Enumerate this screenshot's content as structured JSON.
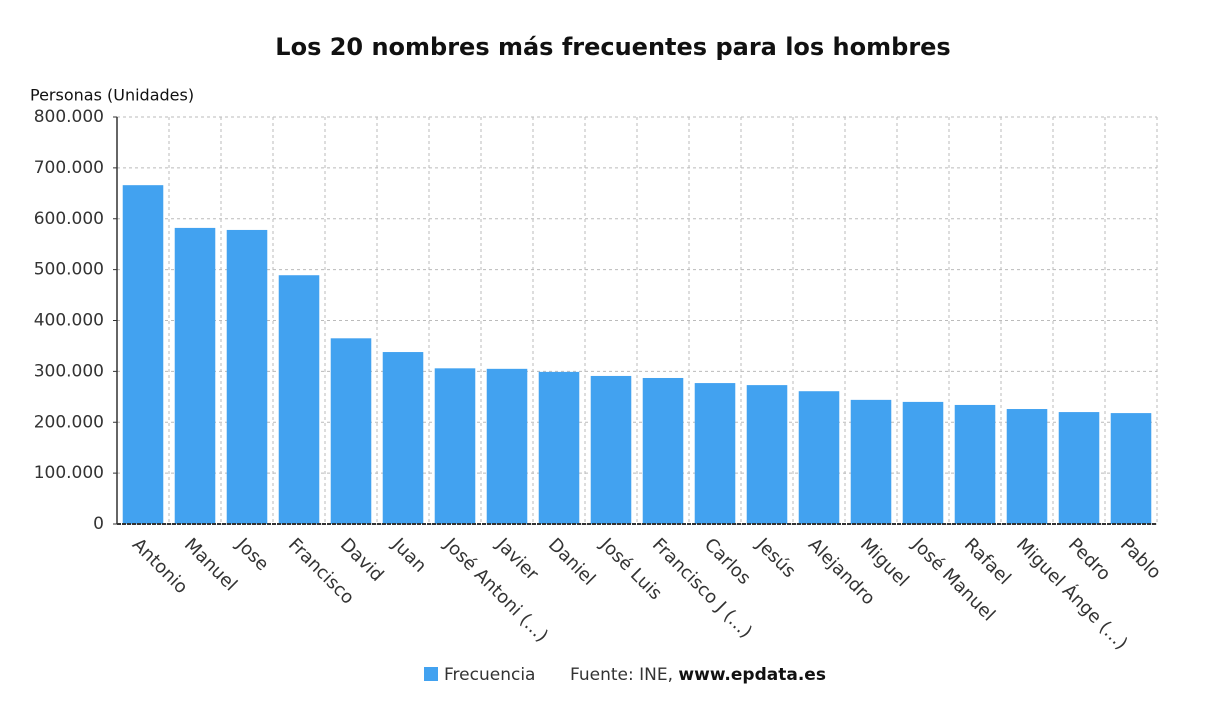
{
  "chart_data": {
    "type": "bar",
    "title": "Los 20 nombres más frecuentes para los hombres",
    "y_label": "Personas (Unidades)",
    "categories": [
      "Antonio",
      "Manuel",
      "Jose",
      "Francisco",
      "David",
      "Juan",
      "José Antoni (...)",
      "Javier",
      "Daniel",
      "José Luis",
      "Francisco J (...)",
      "Carlos",
      "Jesús",
      "Alejandro",
      "Miguel",
      "José Manuel",
      "Rafael",
      "Miguel Ánge (...)",
      "Pedro",
      "Pablo"
    ],
    "series": [
      {
        "name": "Frecuencia",
        "color": "#42a2f0",
        "values": [
          666000,
          582000,
          578000,
          489000,
          365000,
          338000,
          306000,
          305000,
          299000,
          291000,
          287000,
          277000,
          273000,
          261000,
          244000,
          240000,
          234000,
          226000,
          220000,
          218000
        ]
      }
    ],
    "ylim": [
      0,
      800000
    ],
    "yticks": [
      0,
      {
        "value": 100000,
        "label": "100.000"
      },
      {
        "value": 200000,
        "label": "200.000"
      },
      {
        "value": 300000,
        "label": "300.000"
      },
      {
        "value": 400000,
        "label": "400.000"
      },
      {
        "value": 500000,
        "label": "500.000"
      },
      {
        "value": 600000,
        "label": "600.000"
      },
      {
        "value": 700000,
        "label": "700.000"
      },
      {
        "value": 800000,
        "label": "800.000"
      }
    ],
    "grid": true,
    "source_prefix": "Fuente: INE,",
    "source_link": "www.epdata.es"
  }
}
